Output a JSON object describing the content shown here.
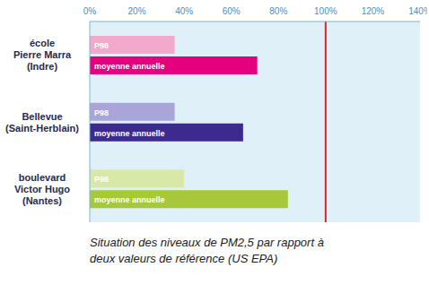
{
  "chart_data": {
    "type": "bar",
    "orientation": "horizontal",
    "title": "Situation des niveaux de PM2,5 par rapport à deux valeurs de référence (US EPA)",
    "categories": [
      "école Pierre Marra (Indre)",
      "Bellevue (Saint-Herblain)",
      "boulevard Victor Hugo (Nantes)"
    ],
    "series": [
      {
        "name": "P98",
        "colors": [
          "#f2a9cb",
          "#aaa5d8",
          "#d7e8a8"
        ],
        "values": [
          36,
          36,
          40
        ]
      },
      {
        "name": "moyenne annuelle",
        "colors": [
          "#e5007d",
          "#3c2a8e",
          "#a6c83a"
        ],
        "values": [
          71,
          65,
          84
        ]
      }
    ],
    "xlim": [
      0,
      140
    ],
    "xticks": [
      {
        "value": 0,
        "label": "0%"
      },
      {
        "value": 20,
        "label": "20%"
      },
      {
        "value": 40,
        "label": "40%"
      },
      {
        "value": 60,
        "label": "60%"
      },
      {
        "value": 80,
        "label": "80%"
      },
      {
        "value": 100,
        "label": "100%"
      },
      {
        "value": 120,
        "label": "120%"
      },
      {
        "value": 140,
        "label": "140%"
      }
    ],
    "reference_line": {
      "value": 100,
      "color": "#d9262b"
    },
    "grid": false,
    "legend": false
  }
}
